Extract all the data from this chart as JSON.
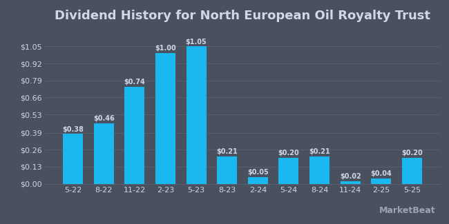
{
  "title": "Dividend History for North European Oil Royalty Trust",
  "categories": [
    "5-22",
    "8-22",
    "11-22",
    "2-23",
    "5-23",
    "8-23",
    "2-24",
    "5-24",
    "8-24",
    "11-24",
    "2-25",
    "5-25"
  ],
  "values": [
    0.38,
    0.46,
    0.74,
    1.0,
    1.05,
    0.21,
    0.05,
    0.2,
    0.21,
    0.02,
    0.04,
    0.2
  ],
  "labels": [
    "$0.38",
    "$0.46",
    "$0.74",
    "$1.00",
    "$1.05",
    "$0.21",
    "$0.05",
    "$0.20",
    "$0.21",
    "$0.02",
    "$0.04",
    "$0.20"
  ],
  "bar_color": "#1ab8f0",
  "background_color": "#49515e",
  "text_color": "#d0d8e8",
  "grid_color": "#5a6272",
  "ylim": [
    0,
    1.2
  ],
  "yticks": [
    0.0,
    0.13,
    0.26,
    0.39,
    0.53,
    0.66,
    0.79,
    0.92,
    1.05
  ],
  "ytick_labels": [
    "$0.00",
    "$0.13",
    "$0.26",
    "$0.39",
    "$0.53",
    "$0.66",
    "$0.79",
    "$0.92",
    "$1.05"
  ],
  "title_fontsize": 13,
  "tick_fontsize": 8,
  "label_fontsize": 7,
  "watermark": "MarketBeat"
}
